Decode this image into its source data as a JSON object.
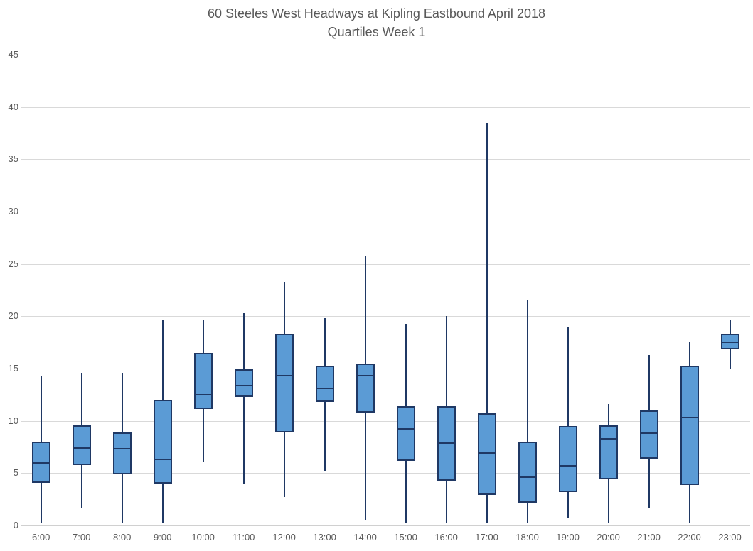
{
  "title": {
    "line1": "60 Steeles West Headways at Kipling Eastbound April 2018",
    "line2": "Quartiles Week 1"
  },
  "colors": {
    "box_fill": "#5B9BD5",
    "box_border": "#1F3864",
    "gridline": "#D9D9D9",
    "axis_text": "#595959",
    "title_text": "#595959",
    "background": "#FFFFFF"
  },
  "chart_data": {
    "type": "boxplot",
    "title": "60 Steeles West Headways at Kipling Eastbound April 2018",
    "subtitle": "Quartiles Week 1",
    "xlabel": "",
    "ylabel": "",
    "ylim": [
      0,
      46
    ],
    "y_ticks": [
      0,
      5,
      10,
      15,
      20,
      25,
      30,
      35,
      40,
      45
    ],
    "grid": "horizontal-only",
    "legend_position": "none",
    "categories": [
      "6:00",
      "7:00",
      "8:00",
      "9:00",
      "10:00",
      "11:00",
      "12:00",
      "13:00",
      "14:00",
      "15:00",
      "16:00",
      "17:00",
      "18:00",
      "19:00",
      "20:00",
      "21:00",
      "22:00",
      "23:00"
    ],
    "boxes": [
      {
        "category": "6:00",
        "min": 0.2,
        "q1": 4.1,
        "median": 6.0,
        "q3": 8.0,
        "max": 14.3
      },
      {
        "category": "7:00",
        "min": 1.7,
        "q1": 5.8,
        "median": 7.4,
        "q3": 9.6,
        "max": 14.5
      },
      {
        "category": "8:00",
        "min": 0.3,
        "q1": 4.9,
        "median": 7.3,
        "q3": 8.9,
        "max": 14.6
      },
      {
        "category": "9:00",
        "min": 0.2,
        "q1": 4.0,
        "median": 6.3,
        "q3": 12.0,
        "max": 19.6
      },
      {
        "category": "10:00",
        "min": 6.1,
        "q1": 11.1,
        "median": 12.5,
        "q3": 16.5,
        "max": 19.6
      },
      {
        "category": "11:00",
        "min": 4.0,
        "q1": 12.3,
        "median": 13.4,
        "q3": 14.9,
        "max": 20.3
      },
      {
        "category": "12:00",
        "min": 2.7,
        "q1": 8.9,
        "median": 14.3,
        "q3": 18.3,
        "max": 23.3
      },
      {
        "category": "13:00",
        "min": 5.2,
        "q1": 11.8,
        "median": 13.1,
        "q3": 15.3,
        "max": 19.8
      },
      {
        "category": "14:00",
        "min": 0.5,
        "q1": 10.8,
        "median": 14.3,
        "q3": 15.5,
        "max": 25.7
      },
      {
        "category": "15:00",
        "min": 0.3,
        "q1": 6.2,
        "median": 9.2,
        "q3": 11.4,
        "max": 19.3
      },
      {
        "category": "16:00",
        "min": 0.3,
        "q1": 4.3,
        "median": 7.9,
        "q3": 11.4,
        "max": 20.0
      },
      {
        "category": "17:00",
        "min": 0.2,
        "q1": 2.9,
        "median": 6.9,
        "q3": 10.7,
        "max": 38.5
      },
      {
        "category": "18:00",
        "min": 0.2,
        "q1": 2.2,
        "median": 4.6,
        "q3": 8.0,
        "max": 21.5
      },
      {
        "category": "19:00",
        "min": 0.7,
        "q1": 3.2,
        "median": 5.7,
        "q3": 9.5,
        "max": 19.0
      },
      {
        "category": "20:00",
        "min": 0.2,
        "q1": 4.4,
        "median": 8.3,
        "q3": 9.6,
        "max": 11.6
      },
      {
        "category": "21:00",
        "min": 1.6,
        "q1": 6.4,
        "median": 8.8,
        "q3": 11.0,
        "max": 16.3
      },
      {
        "category": "22:00",
        "min": 0.2,
        "q1": 3.9,
        "median": 10.3,
        "q3": 15.3,
        "max": 17.6
      },
      {
        "category": "23:00",
        "min": 15.0,
        "q1": 16.8,
        "median": 17.5,
        "q3": 18.3,
        "max": 19.6
      }
    ]
  }
}
